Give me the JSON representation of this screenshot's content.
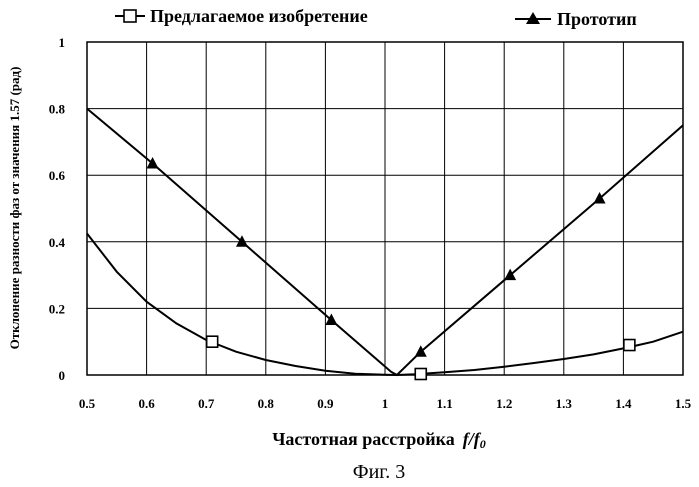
{
  "caption": "Фиг. 3",
  "chart_data": {
    "type": "line",
    "title": "",
    "xlabel": "Частотная расстройка",
    "xlabel_formula_main": "f/f",
    "xlabel_formula_sub": "0",
    "ylabel": "Отклонение разности фаз от значения 1.57 (рад)",
    "xlim": [
      0.5,
      1.5
    ],
    "ylim": [
      0,
      1
    ],
    "x_ticks": [
      "0.5",
      "0.6",
      "0.7",
      "0.8",
      "0.9",
      "1",
      "1.1",
      "1.2",
      "1.3",
      "1.4",
      "1.5"
    ],
    "y_ticks": [
      "0",
      "0.2",
      "0.4",
      "0.6",
      "0.8",
      "1"
    ],
    "grid": true,
    "legend_position": "top",
    "series": [
      {
        "name": "Предлагаемое изобретение",
        "marker": "square",
        "color": "#000000",
        "x": [
          0.5,
          0.55,
          0.6,
          0.65,
          0.7,
          0.75,
          0.8,
          0.85,
          0.9,
          0.95,
          1.0,
          1.02,
          1.05,
          1.1,
          1.15,
          1.2,
          1.25,
          1.3,
          1.35,
          1.4,
          1.45,
          1.5
        ],
        "y": [
          0.425,
          0.31,
          0.22,
          0.155,
          0.105,
          0.07,
          0.045,
          0.027,
          0.013,
          0.004,
          0.001,
          0.0,
          0.002,
          0.008,
          0.015,
          0.025,
          0.036,
          0.048,
          0.062,
          0.08,
          0.1,
          0.13
        ],
        "marker_x": [
          0.71,
          1.06,
          1.41
        ],
        "marker_y": [
          0.1,
          0.003,
          0.09
        ]
      },
      {
        "name": "Прототип",
        "marker": "triangle",
        "color": "#000000",
        "x": [
          0.5,
          0.61,
          0.76,
          0.91,
          1.01,
          1.02,
          1.06,
          1.21,
          1.36,
          1.5
        ],
        "y": [
          0.8,
          0.635,
          0.4,
          0.165,
          0.01,
          0.0,
          0.07,
          0.3,
          0.53,
          0.75
        ],
        "marker_x": [
          0.61,
          0.76,
          0.91,
          1.06,
          1.21,
          1.36
        ],
        "marker_y": [
          0.635,
          0.4,
          0.165,
          0.07,
          0.3,
          0.53
        ]
      }
    ]
  }
}
